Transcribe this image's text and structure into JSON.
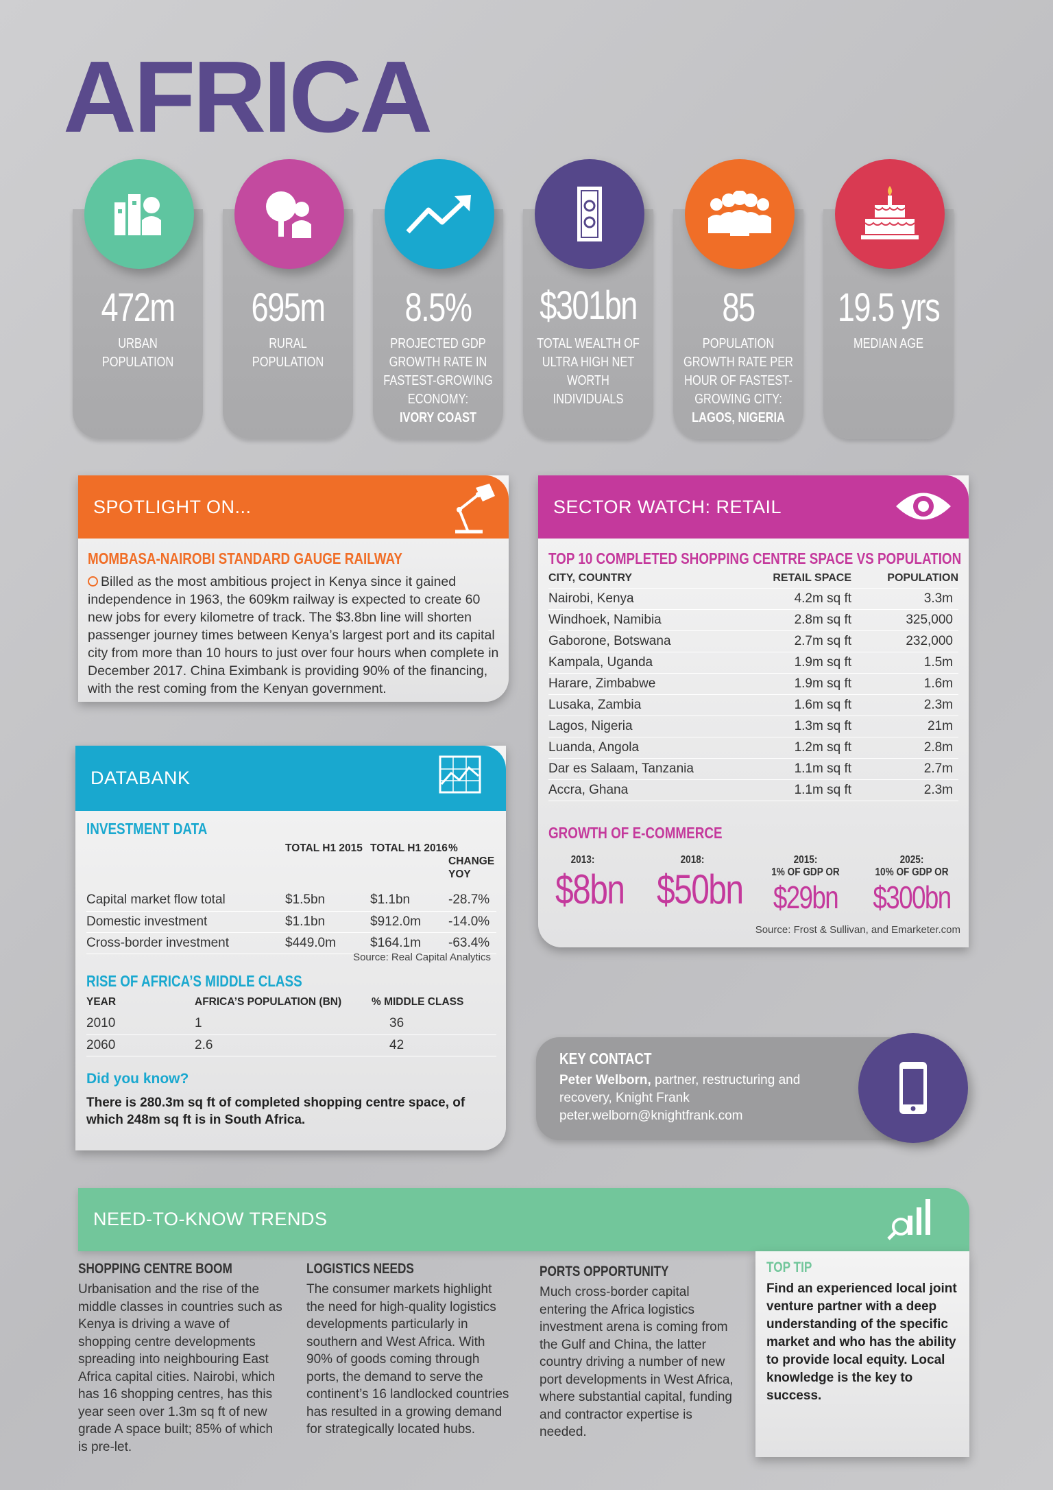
{
  "title": "AFRICA",
  "stats": [
    {
      "value": "472m",
      "label": "URBAN POPULATION",
      "bold": "",
      "color": "#5fc5a0",
      "icon": "urban-buildings-icon"
    },
    {
      "value": "695m",
      "label": "RURAL POPULATION",
      "bold": "",
      "color": "#c34a9f",
      "icon": "tree-house-icon"
    },
    {
      "value": "8.5%",
      "label": "PROJECTED GDP GROWTH RATE IN FASTEST-GROWING ECONOMY:",
      "bold": "IVORY COAST",
      "color": "#19a8cf",
      "icon": "trend-arrow-icon"
    },
    {
      "value": "$301bn",
      "label": "TOTAL WEALTH OF ULTRA HIGH NET WORTH INDIVIDUALS",
      "bold": "",
      "color": "#55478a",
      "icon": "banknote-icon"
    },
    {
      "value": "85",
      "label": "POPULATION GROWTH RATE PER HOUR OF FASTEST-GROWING CITY:",
      "bold": "LAGOS, NIGERIA",
      "color": "#f06e27",
      "icon": "people-group-icon"
    },
    {
      "value": "19.5 yrs",
      "label": "MEDIAN AGE",
      "bold": "",
      "color": "#d93a52",
      "icon": "birthday-cake-icon"
    }
  ],
  "spotlight": {
    "header": "SPOTLIGHT ON...",
    "heading": "MOMBASA-NAIROBI STANDARD GAUGE RAILWAY",
    "body": "Billed as the most ambitious project in Kenya since it gained independence in 1963, the 609km railway is expected to create 60 new jobs for every kilometre of track. The $3.8bn line will shorten passenger journey times between Kenya’s largest port and its capital city from more than 10 hours to just over four hours when complete in December 2017. China Eximbank is providing 90% of the financing, with the rest coming from the Kenyan government.",
    "color": "#f06e27"
  },
  "retail": {
    "header": "SECTOR WATCH: RETAIL",
    "heading": "TOP 10 COMPLETED SHOPPING CENTRE SPACE VS POPULATION",
    "columns": [
      "CITY, COUNTRY",
      "RETAIL SPACE",
      "POPULATION"
    ],
    "rows": [
      [
        "Nairobi, Kenya",
        "4.2m sq ft",
        "3.3m"
      ],
      [
        "Windhoek, Namibia",
        "2.8m sq ft",
        "325,000"
      ],
      [
        "Gaborone, Botswana",
        "2.7m sq ft",
        "232,000"
      ],
      [
        "Kampala, Uganda",
        "1.9m sq ft",
        "1.5m"
      ],
      [
        "Harare, Zimbabwe",
        "1.9m sq ft",
        "1.6m"
      ],
      [
        "Lusaka, Zambia",
        "1.6m sq ft",
        "2.3m"
      ],
      [
        "Lagos, Nigeria",
        "1.3m sq ft",
        "21m"
      ],
      [
        "Luanda, Angola",
        "1.2m sq ft",
        "2.8m"
      ],
      [
        "Dar es Salaam, Tanzania",
        "1.1m sq ft",
        "2.7m"
      ],
      [
        "Accra, Ghana",
        "1.1m sq ft",
        "2.3m"
      ]
    ],
    "ecommerce_heading": "GROWTH OF E-COMMERCE",
    "ecommerce": [
      {
        "year": "2013:",
        "note": "",
        "value": "$8bn"
      },
      {
        "year": "2018:",
        "note": "",
        "value": "$50bn"
      },
      {
        "year": "2015:",
        "note": "1% OF GDP OR",
        "value": "$29bn"
      },
      {
        "year": "2025:",
        "note": "10% OF GDP OR",
        "value": "$300bn"
      }
    ],
    "source": "Source: Frost & Sullivan, and Emarketer.com",
    "color": "#c4399c"
  },
  "databank": {
    "header": "DATABANK",
    "investment_heading": "INVESTMENT DATA",
    "investment_columns": [
      "",
      "TOTAL H1 2015",
      "TOTAL H1 2016",
      "% CHANGE YOY"
    ],
    "investment_rows": [
      [
        "Capital market flow total",
        "$1.5bn",
        "$1.1bn",
        "-28.7%"
      ],
      [
        "Domestic investment",
        "$1.1bn",
        "$912.0m",
        "-14.0%"
      ],
      [
        "Cross-border investment",
        "$449.0m",
        "$164.1m",
        "-63.4%"
      ]
    ],
    "investment_source": "Source: Real Capital Analytics",
    "middle_heading": "RISE OF AFRICA’S MIDDLE CLASS",
    "middle_columns": [
      "YEAR",
      "AFRICA’S POPULATION (BN)",
      "% MIDDLE CLASS"
    ],
    "middle_rows": [
      [
        "2010",
        "1",
        "36"
      ],
      [
        "2060",
        "2.6",
        "42"
      ]
    ],
    "did_you_know": "Did you know?",
    "fact": "There is 280.3m sq ft of completed shopping centre space, of which 248m sq ft is in South Africa.",
    "color": "#19a8cf"
  },
  "contact": {
    "heading": "KEY CONTACT",
    "name": "Peter Welborn,",
    "role": "partner, restructuring and recovery, Knight Frank",
    "email": "peter.welborn@knightfrank.com",
    "color": "#55478a"
  },
  "trends": {
    "header": "NEED-TO-KNOW TRENDS",
    "color": "#72c69b",
    "items": [
      {
        "heading": "SHOPPING CENTRE BOOM",
        "body": "Urbanisation and the rise of the middle classes in countries such as Kenya is driving a wave of shopping centre developments spreading into neighbouring East Africa capital cities. Nairobi, which has 16 shopping centres, has this year seen over 1.3m sq ft of new grade A space built; 85% of which is pre-let."
      },
      {
        "heading": "LOGISTICS NEEDS",
        "body": "The consumer markets highlight the need for high-quality logistics developments particularly in southern and West Africa. With 90% of goods coming through ports, the demand to serve the continent’s 16 landlocked countries has resulted in a growing demand for strategically located hubs."
      },
      {
        "heading": "PORTS OPPORTUNITY",
        "body": "Much cross-border capital entering the Africa logistics investment arena is coming from the Gulf and China, the latter country driving a number of new port developments in West Africa, where substantial capital, funding and contractor expertise is needed."
      }
    ],
    "tip_heading": "TOP TIP",
    "tip": "Find an experienced local joint venture partner with a deep understanding of the specific market and who has the ability to provide local equity. Local knowledge is the key to success."
  }
}
